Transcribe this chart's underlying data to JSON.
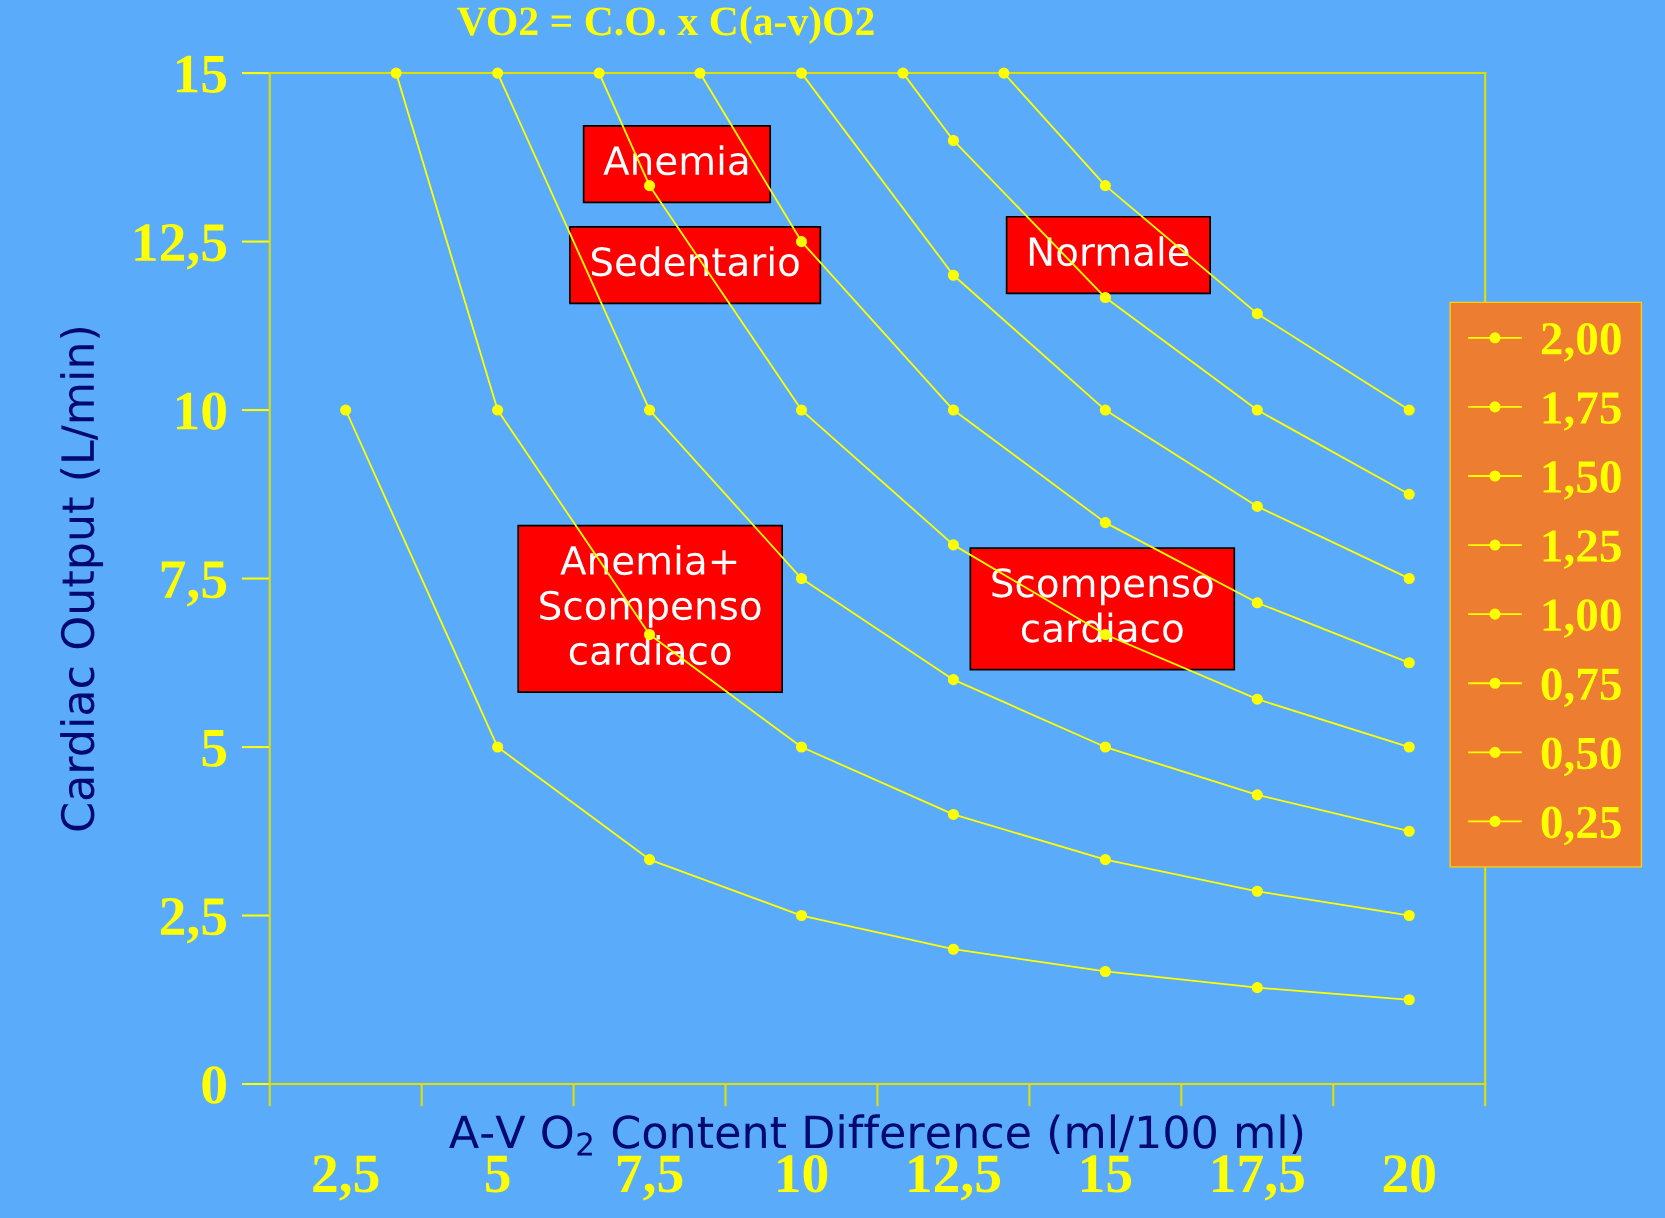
{
  "chart_data": {
    "type": "line",
    "title": "VO2 = C.O. x C(a-v)O2",
    "xlabel": "A-V O$_{2}$ Content Difference (ml/100 ml)",
    "ylabel": "Cardiac Output (L/min)",
    "xlim": [
      1.25,
      21.25
    ],
    "xticks": [
      {
        "value": 2.5,
        "label": "2,5"
      },
      {
        "value": 5,
        "label": "5"
      },
      {
        "value": 7.5,
        "label": "7,5"
      },
      {
        "value": 10,
        "label": "10"
      },
      {
        "value": 12.5,
        "label": "12,5"
      },
      {
        "value": 15,
        "label": "15"
      },
      {
        "value": 17.5,
        "label": "17,5"
      },
      {
        "value": 20,
        "label": "20"
      }
    ],
    "ylim": [
      0,
      15
    ],
    "yticks": [
      0,
      {
        "value": 2.5,
        "label": "2,5"
      },
      5,
      {
        "value": 7.5,
        "label": "7,5"
      },
      10,
      {
        "value": 12.5,
        "label": "12,5"
      },
      15
    ],
    "legend": "right",
    "marker": "circle",
    "line_style": "solid",
    "grid": false,
    "series": [
      {
        "name": "2,00",
        "color": "#ffff00",
        "x": [
          13.33,
          15,
          17.5,
          20
        ],
        "values": [
          15,
          13.33,
          11.43,
          10
        ]
      },
      {
        "name": "1,75",
        "color": "#ffff00",
        "x": [
          11.67,
          12.5,
          15,
          17.5,
          20
        ],
        "values": [
          15,
          14,
          11.67,
          10,
          8.75
        ]
      },
      {
        "name": "1,50",
        "color": "#ffff00",
        "x": [
          10,
          12.5,
          15,
          17.5,
          20
        ],
        "values": [
          15,
          12,
          10,
          8.57,
          7.5
        ]
      },
      {
        "name": "1,25",
        "color": "#ffff00",
        "x": [
          8.33,
          10,
          12.5,
          15,
          17.5,
          20
        ],
        "values": [
          15,
          12.5,
          10,
          8.33,
          7.14,
          6.25
        ]
      },
      {
        "name": "1,00",
        "color": "#ffff00",
        "x": [
          6.67,
          7.5,
          10,
          12.5,
          15,
          17.5,
          20
        ],
        "values": [
          15,
          13.33,
          10,
          8,
          6.67,
          5.71,
          5
        ]
      },
      {
        "name": "0,75",
        "color": "#ffff00",
        "x": [
          5,
          7.5,
          10,
          12.5,
          15,
          17.5,
          20
        ],
        "values": [
          15,
          10,
          7.5,
          6,
          5,
          4.29,
          3.75
        ]
      },
      {
        "name": "0,50",
        "color": "#ffff00",
        "x": [
          3.33,
          5,
          7.5,
          10,
          12.5,
          15,
          17.5,
          20
        ],
        "values": [
          15,
          10,
          6.67,
          5,
          4,
          3.33,
          2.86,
          2.5
        ]
      },
      {
        "name": "0,25",
        "color": "#ffff00",
        "x": [
          2.5,
          5,
          7.5,
          10,
          12.5,
          15,
          17.5,
          20
        ],
        "values": [
          10,
          5,
          3.33,
          2.5,
          2,
          1.67,
          1.43,
          1.25
        ]
      }
    ],
    "annotations": [
      "Anemia",
      "Sedentario",
      "Normale",
      "Anemia+\nScompenso\ncardiaco",
      "Scompenso\ncardiaco"
    ]
  }
}
